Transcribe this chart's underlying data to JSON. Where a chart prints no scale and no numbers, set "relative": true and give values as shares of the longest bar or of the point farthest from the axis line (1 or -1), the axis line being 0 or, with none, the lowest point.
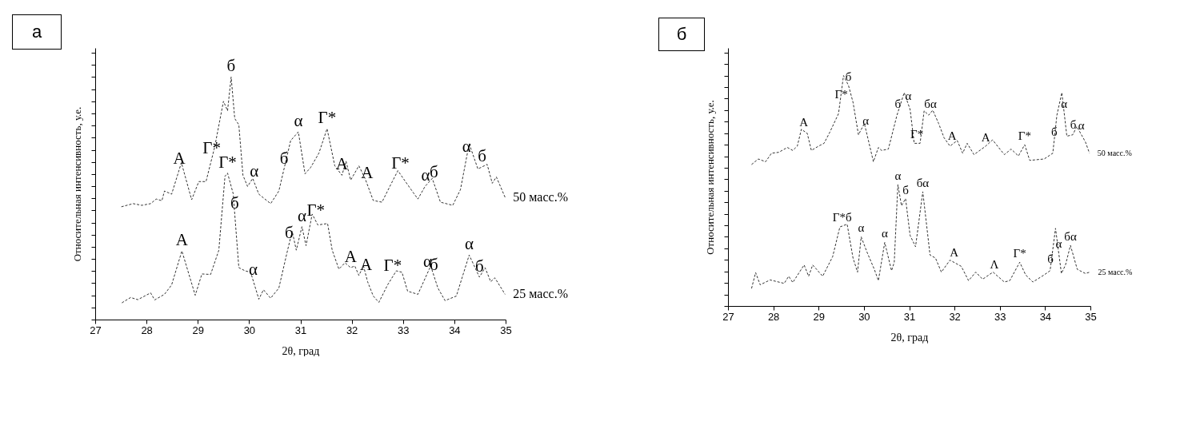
{
  "chart_data": [
    {
      "type": "line",
      "title": "а",
      "xlabel": "2θ, град",
      "ylabel": "Относительная интенсивность, у.е.",
      "relative": true,
      "xlim": [
        27,
        35
      ],
      "xticks": [
        27,
        28,
        29,
        30,
        31,
        32,
        33,
        34,
        35
      ],
      "grid": false,
      "legend": false,
      "line_style": "dashed",
      "series": [
        {
          "name": "50 масс.%",
          "color": "#333333",
          "x": [
            27.51,
            27.74,
            27.91,
            28.08,
            28.19,
            28.3,
            28.35,
            28.49,
            28.68,
            28.88,
            29.02,
            29.16,
            29.33,
            29.5,
            29.58,
            29.65,
            29.72,
            29.8,
            29.88,
            29.97,
            30.07,
            30.19,
            30.42,
            30.58,
            30.81,
            30.96,
            31.09,
            31.2,
            31.36,
            31.52,
            31.67,
            31.81,
            31.89,
            31.98,
            32.14,
            32.26,
            32.42,
            32.59,
            32.76,
            32.9,
            33.09,
            33.29,
            33.43,
            33.57,
            33.73,
            33.97,
            34.12,
            34.29,
            34.46,
            34.64,
            34.74,
            34.82,
            34.99
          ],
          "values": [
            0.465,
            0.478,
            0.471,
            0.478,
            0.497,
            0.49,
            0.53,
            0.517,
            0.647,
            0.494,
            0.569,
            0.569,
            0.712,
            0.9,
            0.861,
            1.0,
            0.829,
            0.803,
            0.595,
            0.549,
            0.582,
            0.517,
            0.478,
            0.53,
            0.738,
            0.774,
            0.601,
            0.627,
            0.686,
            0.787,
            0.634,
            0.595,
            0.653,
            0.575,
            0.634,
            0.582,
            0.491,
            0.484,
            0.556,
            0.614,
            0.556,
            0.497,
            0.549,
            0.582,
            0.484,
            0.471,
            0.536,
            0.725,
            0.621,
            0.64,
            0.562,
            0.588,
            0.504
          ]
        },
        {
          "name": "25 масс.%",
          "color": "#333333",
          "x": [
            27.52,
            27.69,
            27.83,
            28.08,
            28.16,
            28.35,
            28.49,
            28.69,
            28.95,
            29.08,
            29.25,
            29.41,
            29.53,
            29.58,
            29.69,
            29.8,
            29.92,
            30.03,
            30.19,
            30.28,
            30.42,
            30.58,
            30.75,
            30.84,
            30.92,
            31.03,
            31.11,
            31.23,
            31.34,
            31.53,
            31.62,
            31.75,
            31.87,
            31.98,
            32.06,
            32.14,
            32.23,
            32.31,
            32.42,
            32.53,
            32.7,
            32.87,
            32.98,
            33.09,
            33.29,
            33.54,
            33.68,
            33.82,
            34.04,
            34.29,
            34.49,
            34.6,
            34.71,
            34.79,
            34.99
          ],
          "values": [
            0.069,
            0.091,
            0.082,
            0.11,
            0.081,
            0.104,
            0.143,
            0.283,
            0.1,
            0.188,
            0.186,
            0.286,
            0.591,
            0.604,
            0.519,
            0.214,
            0.201,
            0.195,
            0.084,
            0.123,
            0.088,
            0.13,
            0.286,
            0.364,
            0.286,
            0.383,
            0.305,
            0.435,
            0.39,
            0.396,
            0.286,
            0.208,
            0.234,
            0.214,
            0.221,
            0.182,
            0.221,
            0.156,
            0.097,
            0.071,
            0.143,
            0.201,
            0.195,
            0.117,
            0.104,
            0.221,
            0.13,
            0.078,
            0.097,
            0.266,
            0.175,
            0.214,
            0.156,
            0.172,
            0.104
          ]
        }
      ],
      "annotations": [
        {
          "text": "А",
          "x": 28.64,
          "y": 0.62
        },
        {
          "text": "Г*",
          "x": 29.27,
          "y": 0.661
        },
        {
          "text": "б",
          "x": 29.65,
          "y": 1.0
        },
        {
          "text": "б",
          "x": 30.68,
          "y": 0.62
        },
        {
          "text": "α",
          "x": 30.96,
          "y": 0.774
        },
        {
          "text": "Г*",
          "x": 31.52,
          "y": 0.787
        },
        {
          "text": "А",
          "x": 31.81,
          "y": 0.595
        },
        {
          "text": "А",
          "x": 32.3,
          "y": 0.559
        },
        {
          "text": "Г*",
          "x": 32.95,
          "y": 0.599
        },
        {
          "text": "α",
          "x": 33.44,
          "y": 0.551
        },
        {
          "text": "б",
          "x": 33.6,
          "y": 0.564
        },
        {
          "text": "α",
          "x": 34.24,
          "y": 0.669
        },
        {
          "text": "б",
          "x": 34.54,
          "y": 0.629
        },
        {
          "text": "Г*",
          "x": 29.58,
          "y": 0.604
        },
        {
          "text": "б",
          "x": 29.72,
          "y": 0.436
        },
        {
          "text": "α",
          "x": 30.1,
          "y": 0.566
        },
        {
          "text": "б",
          "x": 30.78,
          "y": 0.312
        },
        {
          "text": "α",
          "x": 31.03,
          "y": 0.383
        },
        {
          "text": "Г*",
          "x": 31.3,
          "y": 0.406
        },
        {
          "text": "А",
          "x": 28.69,
          "y": 0.283
        },
        {
          "text": "α",
          "x": 30.08,
          "y": 0.16
        },
        {
          "text": "А",
          "x": 31.98,
          "y": 0.214
        },
        {
          "text": "А",
          "x": 32.28,
          "y": 0.18
        },
        {
          "text": "Г*",
          "x": 32.8,
          "y": 0.177
        },
        {
          "text": "α",
          "x": 33.48,
          "y": 0.193
        },
        {
          "text": "б",
          "x": 33.6,
          "y": 0.182
        },
        {
          "text": "α",
          "x": 34.29,
          "y": 0.266
        },
        {
          "text": "б",
          "x": 34.49,
          "y": 0.175
        }
      ]
    },
    {
      "type": "line",
      "title": "б",
      "xlabel": "2θ, град",
      "ylabel": "Относительная интенсивность, у.е.",
      "relative": true,
      "xlim": [
        27,
        35
      ],
      "xticks": [
        27,
        28,
        29,
        30,
        31,
        32,
        33,
        34,
        35
      ],
      "grid": false,
      "legend": false,
      "line_style": "dashed",
      "series": [
        {
          "name": "50 масс.%",
          "color": "#333333",
          "x": [
            27.52,
            27.67,
            27.83,
            27.96,
            28.12,
            28.31,
            28.43,
            28.53,
            28.62,
            28.75,
            28.84,
            29.0,
            29.12,
            29.25,
            29.44,
            29.55,
            29.66,
            29.76,
            29.88,
            30.01,
            30.1,
            30.21,
            30.32,
            30.39,
            30.54,
            30.73,
            30.89,
            31.02,
            31.11,
            31.24,
            31.33,
            31.43,
            31.52,
            31.65,
            31.77,
            31.9,
            32.06,
            32.18,
            32.28,
            32.43,
            32.69,
            32.84,
            33.1,
            33.25,
            33.41,
            33.55,
            33.66,
            33.98,
            34.17,
            34.26,
            34.37,
            34.48,
            34.61,
            34.7,
            34.89,
            34.98
          ],
          "values": [
            0.614,
            0.638,
            0.626,
            0.663,
            0.667,
            0.688,
            0.675,
            0.694,
            0.767,
            0.749,
            0.675,
            0.694,
            0.706,
            0.755,
            0.835,
            1.0,
            0.957,
            0.884,
            0.743,
            0.792,
            0.718,
            0.626,
            0.688,
            0.675,
            0.681,
            0.828,
            0.926,
            0.853,
            0.706,
            0.706,
            0.847,
            0.828,
            0.85,
            0.792,
            0.73,
            0.694,
            0.718,
            0.663,
            0.706,
            0.657,
            0.694,
            0.721,
            0.657,
            0.681,
            0.651,
            0.7,
            0.632,
            0.638,
            0.663,
            0.828,
            0.926,
            0.737,
            0.743,
            0.779,
            0.712,
            0.663
          ]
        },
        {
          "name": "25 масс.%",
          "color": "#333333",
          "x": [
            27.52,
            27.61,
            27.71,
            27.93,
            28.24,
            28.34,
            28.43,
            28.68,
            28.78,
            28.87,
            29.09,
            29.31,
            29.47,
            29.63,
            29.76,
            29.86,
            29.94,
            30.07,
            30.23,
            30.32,
            30.46,
            30.61,
            30.67,
            30.75,
            30.83,
            30.92,
            31.02,
            31.14,
            31.3,
            31.46,
            31.58,
            31.71,
            31.9,
            32.15,
            32.31,
            32.47,
            32.62,
            32.85,
            33.1,
            33.22,
            33.44,
            33.57,
            33.73,
            33.98,
            34.11,
            34.23,
            34.36,
            34.45,
            34.56,
            34.71,
            34.89,
            34.99
          ],
          "values": [
            0.076,
            0.145,
            0.092,
            0.113,
            0.098,
            0.129,
            0.102,
            0.178,
            0.129,
            0.178,
            0.129,
            0.214,
            0.343,
            0.355,
            0.208,
            0.147,
            0.3,
            0.233,
            0.159,
            0.11,
            0.276,
            0.153,
            0.19,
            0.527,
            0.435,
            0.466,
            0.306,
            0.257,
            0.496,
            0.221,
            0.208,
            0.147,
            0.199,
            0.172,
            0.11,
            0.147,
            0.116,
            0.147,
            0.104,
            0.11,
            0.19,
            0.135,
            0.104,
            0.135,
            0.153,
            0.337,
            0.141,
            0.178,
            0.263,
            0.159,
            0.141,
            0.147
          ]
        }
      ],
      "annotations": [
        {
          "text": "Г*",
          "x": 29.5,
          "y": 0.88
        },
        {
          "text": "б",
          "x": 29.66,
          "y": 0.957
        },
        {
          "text": "α",
          "x": 30.04,
          "y": 0.767
        },
        {
          "text": "А",
          "x": 28.67,
          "y": 0.76
        },
        {
          "text": "б",
          "x": 30.75,
          "y": 0.84
        },
        {
          "text": "α",
          "x": 30.98,
          "y": 0.875
        },
        {
          "text": "Г*",
          "x": 31.17,
          "y": 0.706
        },
        {
          "text": "бα",
          "x": 31.47,
          "y": 0.838
        },
        {
          "text": "А",
          "x": 31.95,
          "y": 0.702
        },
        {
          "text": "А",
          "x": 32.69,
          "y": 0.694
        },
        {
          "text": "Г*",
          "x": 33.55,
          "y": 0.7
        },
        {
          "text": "б",
          "x": 34.2,
          "y": 0.718
        },
        {
          "text": "α",
          "x": 34.42,
          "y": 0.84
        },
        {
          "text": "б",
          "x": 34.62,
          "y": 0.75
        },
        {
          "text": "α",
          "x": 34.8,
          "y": 0.747
        },
        {
          "text": "α",
          "x": 30.75,
          "y": 0.527
        },
        {
          "text": "б",
          "x": 30.92,
          "y": 0.466
        },
        {
          "text": "бα",
          "x": 31.3,
          "y": 0.496
        },
        {
          "text": "Г*б",
          "x": 29.52,
          "y": 0.347
        },
        {
          "text": "α",
          "x": 29.94,
          "y": 0.3
        },
        {
          "text": "α",
          "x": 30.46,
          "y": 0.276
        },
        {
          "text": "А",
          "x": 31.99,
          "y": 0.195
        },
        {
          "text": "Λ",
          "x": 32.88,
          "y": 0.142
        },
        {
          "text": "Г*",
          "x": 33.44,
          "y": 0.19
        },
        {
          "text": "б",
          "x": 34.12,
          "y": 0.168
        },
        {
          "text": "α",
          "x": 34.3,
          "y": 0.231
        },
        {
          "text": "бα",
          "x": 34.56,
          "y": 0.263
        }
      ]
    }
  ]
}
